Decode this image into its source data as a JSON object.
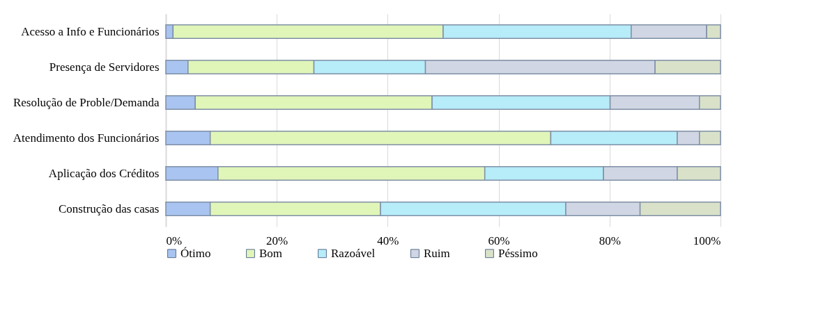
{
  "chart_data": {
    "type": "bar",
    "orientation": "horizontal",
    "stacked": true,
    "categories": [
      "Acesso a Info e Funcionários",
      "Presença de Servidores",
      "Resolução de Proble/Demanda",
      "Atendimento dos Funcionários",
      "Aplicação dos Créditos",
      "Construção das casas"
    ],
    "series": [
      {
        "name": "Ótimo",
        "color": "#a9c4f0",
        "values": [
          1.3,
          4,
          5.3,
          8,
          9.4,
          8
        ]
      },
      {
        "name": "Bom",
        "color": "#e0f5b8",
        "values": [
          48.7,
          22.7,
          42.7,
          61.4,
          48.1,
          30.7
        ]
      },
      {
        "name": "Razoável",
        "color": "#b7ecf9",
        "values": [
          33.9,
          20.1,
          32.1,
          22.8,
          21.4,
          33.4
        ]
      },
      {
        "name": "Ruim",
        "color": "#d0d6e3",
        "values": [
          13.6,
          41.4,
          16.1,
          4,
          13.3,
          13.4
        ]
      },
      {
        "name": "Péssimo",
        "color": "#d9e2c9",
        "values": [
          2.5,
          11.8,
          3.8,
          3.8,
          7.8,
          14.5
        ]
      }
    ],
    "xlim": [
      0,
      100
    ],
    "xticks": [
      {
        "value": 0,
        "label": "0%"
      },
      {
        "value": 20,
        "label": "20%"
      },
      {
        "value": 40,
        "label": "40%"
      },
      {
        "value": 60,
        "label": "60%"
      },
      {
        "value": 80,
        "label": "80%"
      },
      {
        "value": 100,
        "label": "100%"
      }
    ],
    "grid": "x",
    "legend": "bottom"
  }
}
